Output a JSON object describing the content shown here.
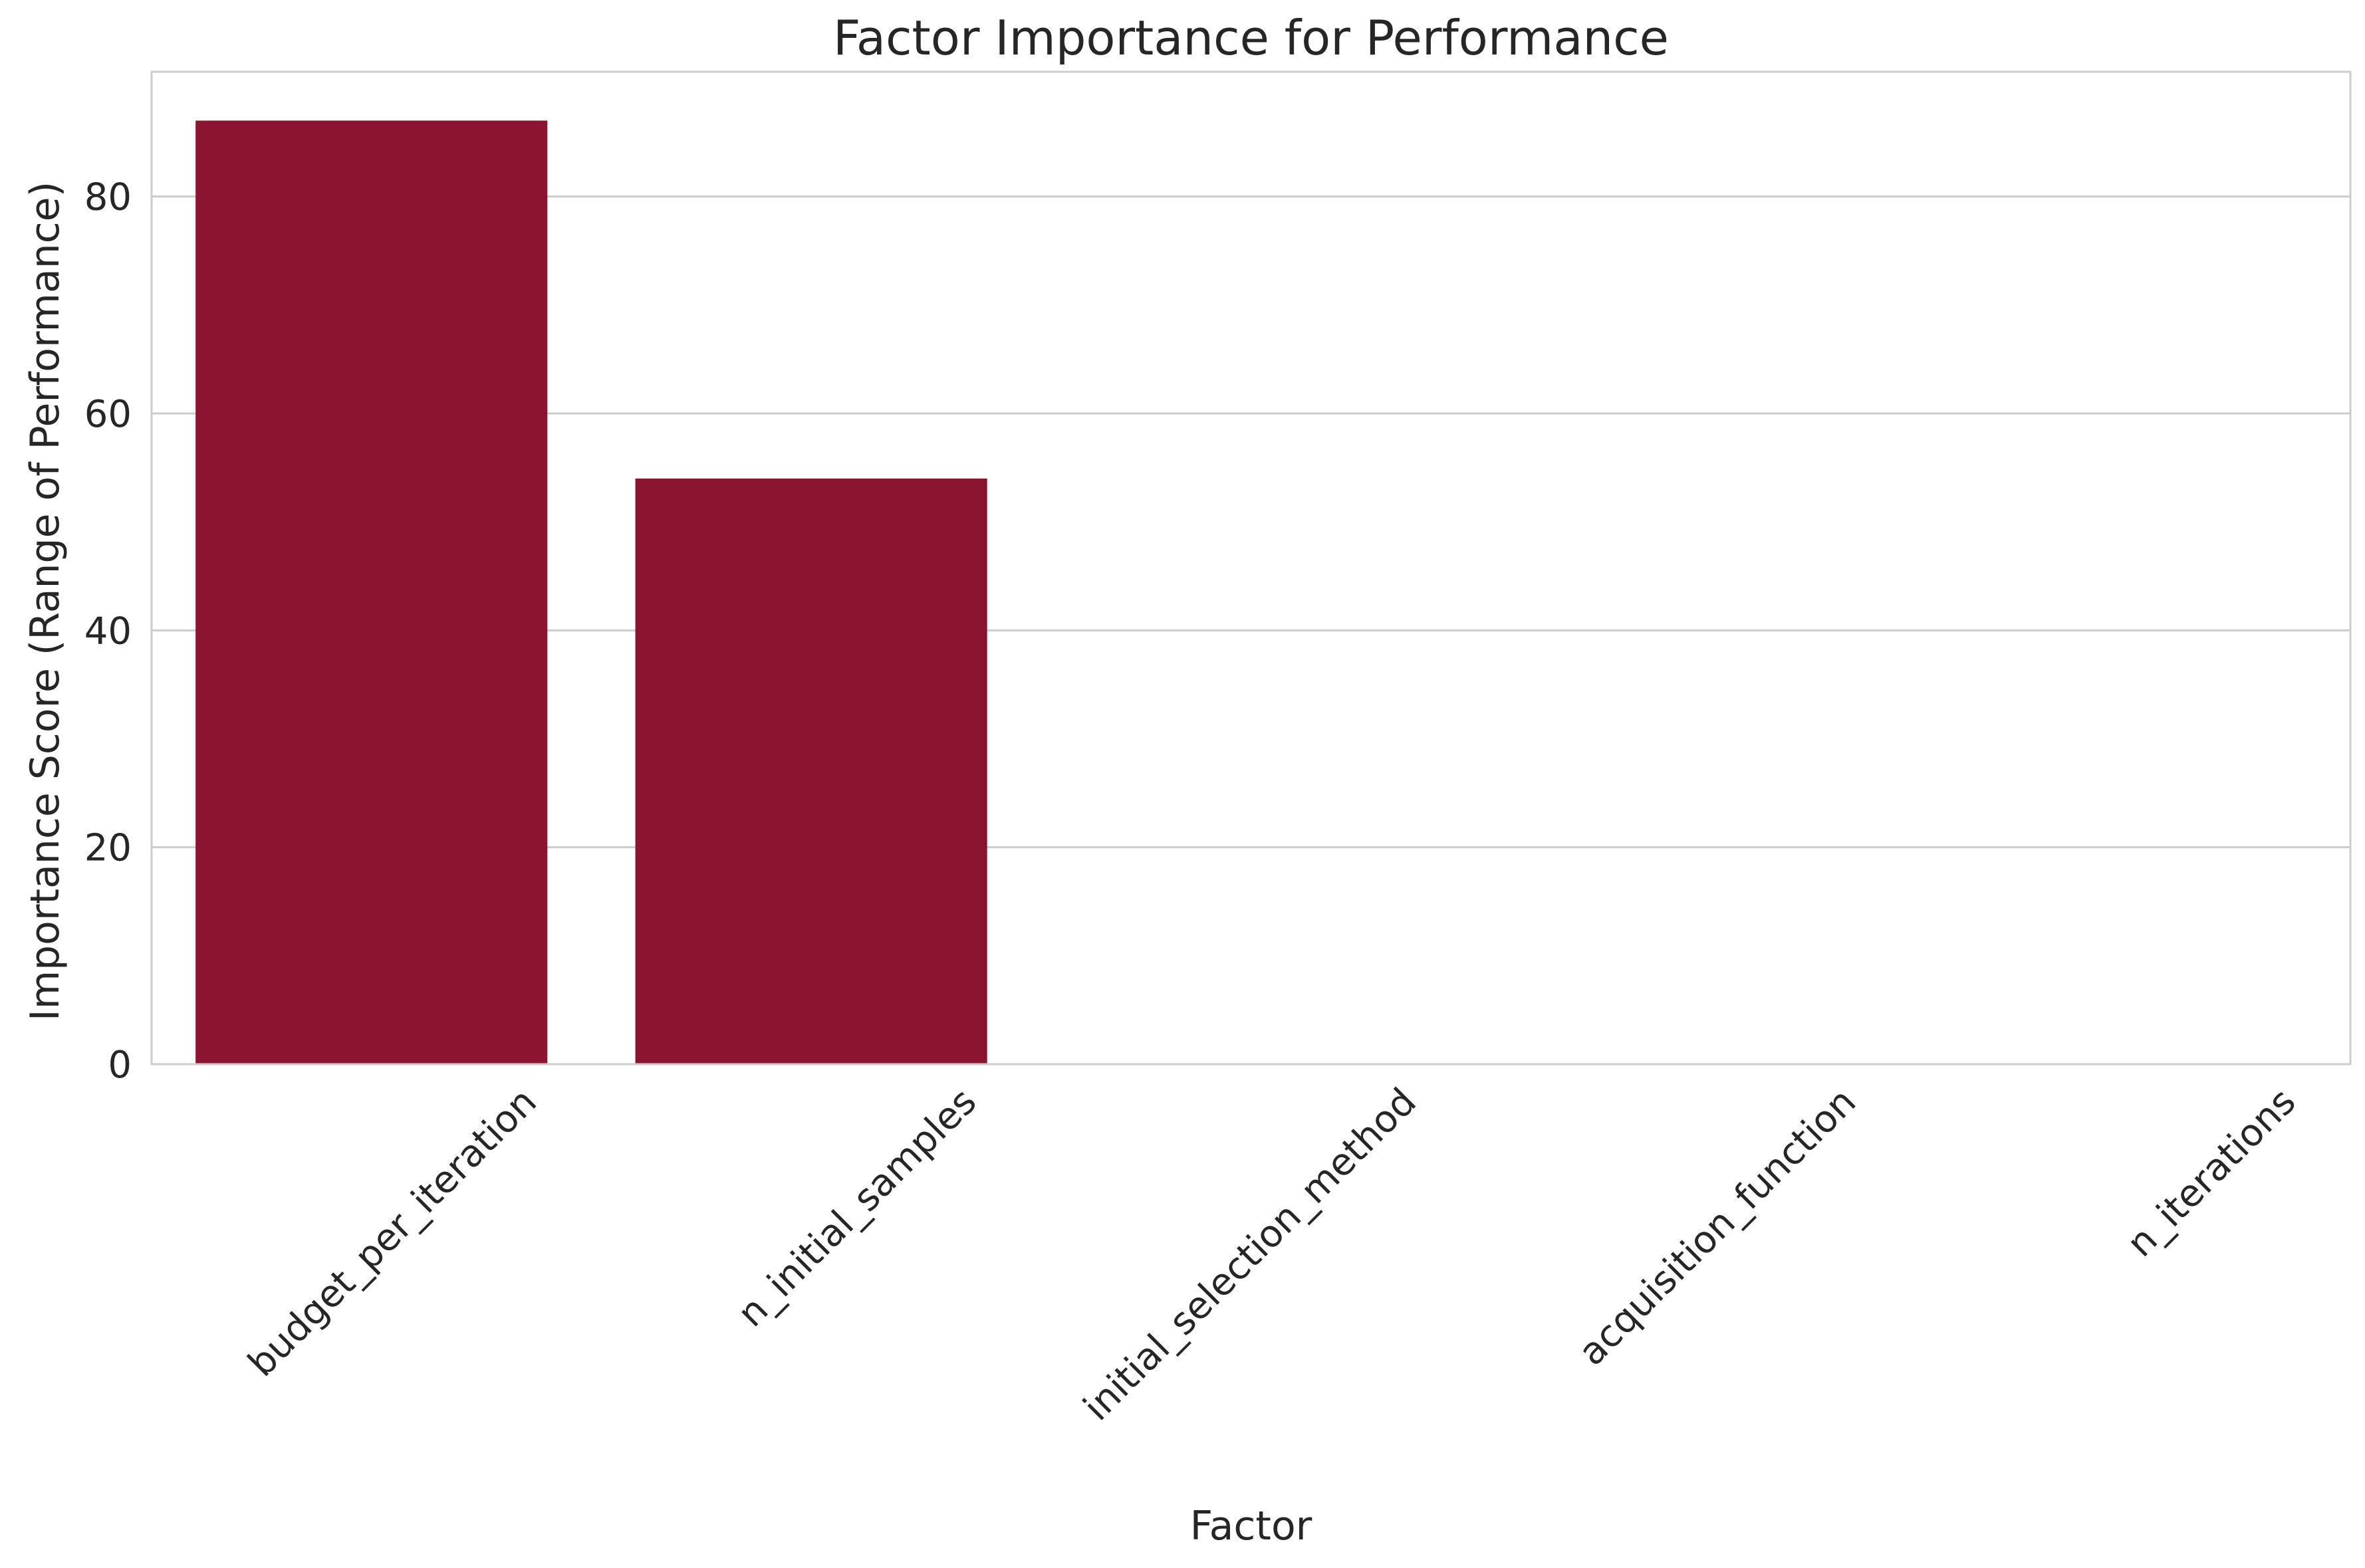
{
  "chart_data": {
    "type": "bar",
    "title": "Factor Importance for Performance",
    "xlabel": "Factor",
    "ylabel": "Importance Score (Range of Performance)",
    "categories": [
      "budget_per_iteration",
      "n_initial_samples",
      "initial_selection_method",
      "acquisition_function",
      "n_iterations"
    ],
    "values": [
      87,
      54,
      0,
      0,
      0
    ],
    "ylim": [
      0,
      91.5
    ],
    "yticks": [
      0,
      20,
      40,
      60,
      80
    ],
    "grid": "y",
    "bar_color": "#8b1530",
    "grid_color": "#cccccc",
    "text_color": "#262626"
  }
}
